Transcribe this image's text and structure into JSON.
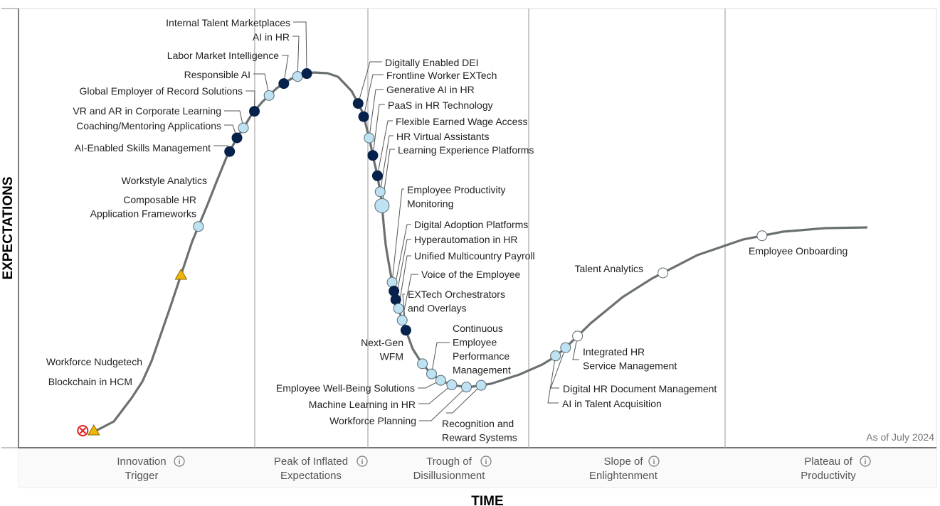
{
  "chart_data": {
    "type": "hype-cycle",
    "xlabel": "TIME",
    "ylabel": "EXPECTATIONS",
    "note": "As of July 2024",
    "phases": [
      [
        "Innovation",
        "Trigger"
      ],
      [
        "Peak of Inflated",
        "Expectations"
      ],
      [
        "Trough of",
        "Disillusionment"
      ],
      [
        "Slope of",
        "Enlightenment"
      ],
      [
        "Plateau of",
        "Productivity"
      ]
    ],
    "colors": {
      "curve": "#6b7170",
      "less_than_2_years": "#ffffff",
      "2_to_5_years": "#bfe2f2",
      "5_to_10_years": "#06224a",
      "more_than_10_years": "#f2b705",
      "obsolete_before_plateau": "#e02020"
    },
    "technologies": [
      {
        "name": [
          "Blockchain in HCM"
        ],
        "t": 0.07,
        "category": "obsolete_before_plateau"
      },
      {
        "name": [
          "Workforce Nudgetech"
        ],
        "t": 0.082,
        "category": "more_than_10_years"
      },
      {
        "name": [
          "Composable HR",
          "Application Frameworks"
        ],
        "t": 0.177,
        "category": "more_than_10_years"
      },
      {
        "name": [
          "Workstyle Analytics"
        ],
        "t": 0.196,
        "category": "2_to_5_years"
      },
      {
        "name": [
          "AI-Enabled Skills Management"
        ],
        "t": 0.23,
        "category": "5_to_10_years"
      },
      {
        "name": [
          "Coaching/Mentoring Applications"
        ],
        "t": 0.238,
        "category": "5_to_10_years"
      },
      {
        "name": [
          "VR and AR in Corporate Learning"
        ],
        "t": 0.245,
        "category": "2_to_5_years"
      },
      {
        "name": [
          "Global Employer of Record Solutions"
        ],
        "t": 0.257,
        "category": "5_to_10_years"
      },
      {
        "name": [
          "Responsible AI"
        ],
        "t": 0.273,
        "category": "2_to_5_years"
      },
      {
        "name": [
          "Labor Market Intelligence"
        ],
        "t": 0.289,
        "category": "5_to_10_years"
      },
      {
        "name": [
          "AI in HR"
        ],
        "t": 0.304,
        "category": "2_to_5_years"
      },
      {
        "name": [
          "Internal Talent Marketplaces"
        ],
        "t": 0.314,
        "category": "5_to_10_years"
      },
      {
        "name": [
          "Digitally Enabled DEI"
        ],
        "t": 0.37,
        "category": "5_to_10_years"
      },
      {
        "name": [
          "Frontline Worker EXTech"
        ],
        "t": 0.376,
        "category": "5_to_10_years"
      },
      {
        "name": [
          "Generative AI in HR"
        ],
        "t": 0.382,
        "category": "2_to_5_years"
      },
      {
        "name": [
          "PaaS in HR Technology"
        ],
        "t": 0.386,
        "category": "5_to_10_years"
      },
      {
        "name": [
          "Flexible Earned Wage Access"
        ],
        "t": 0.391,
        "category": "5_to_10_years"
      },
      {
        "name": [
          "HR Virtual Assistants"
        ],
        "t": 0.394,
        "category": "2_to_5_years"
      },
      {
        "name": [
          "Learning Experience Platforms"
        ],
        "t": 0.396,
        "category": "2_to_5_years"
      },
      {
        "name": [
          "Employee Productivity",
          "Monitoring"
        ],
        "t": 0.407,
        "category": "2_to_5_years"
      },
      {
        "name": [
          "Digital Adoption Platforms"
        ],
        "t": 0.409,
        "category": "5_to_10_years"
      },
      {
        "name": [
          "Hyperautomation in HR"
        ],
        "t": 0.411,
        "category": "5_to_10_years"
      },
      {
        "name": [
          "Unified Multicountry Payroll"
        ],
        "t": 0.414,
        "category": "2_to_5_years"
      },
      {
        "name": [
          "Voice of the Employee"
        ],
        "t": 0.418,
        "category": "2_to_5_years"
      },
      {
        "name": [
          "EXTech Orchestrators",
          "and Overlays"
        ],
        "t": 0.422,
        "category": "5_to_10_years"
      },
      {
        "name": [
          "Next-Gen",
          "WFM"
        ],
        "t": 0.44,
        "category": "2_to_5_years"
      },
      {
        "name": [
          "Continuous",
          "Employee",
          "Performance",
          "Management"
        ],
        "t": 0.45,
        "category": "2_to_5_years"
      },
      {
        "name": [
          "Employee Well-Being Solutions"
        ],
        "t": 0.46,
        "category": "2_to_5_years"
      },
      {
        "name": [
          "Machine Learning in HR"
        ],
        "t": 0.472,
        "category": "2_to_5_years"
      },
      {
        "name": [
          "Workforce Planning"
        ],
        "t": 0.488,
        "category": "2_to_5_years"
      },
      {
        "name": [
          "Recognition and",
          "Reward Systems"
        ],
        "t": 0.504,
        "category": "2_to_5_years"
      },
      {
        "name": [
          "AI in Talent Acquisition"
        ],
        "t": 0.585,
        "category": "2_to_5_years"
      },
      {
        "name": [
          "Digital HR Document Management"
        ],
        "t": 0.596,
        "category": "2_to_5_years"
      },
      {
        "name": [
          "Integrated HR",
          "Service Management"
        ],
        "t": 0.609,
        "category": "less_than_2_years"
      },
      {
        "name": [
          "Talent Analytics"
        ],
        "t": 0.702,
        "category": "less_than_2_years"
      },
      {
        "name": [
          "Employee Onboarding"
        ],
        "t": 0.81,
        "category": "less_than_2_years"
      }
    ]
  }
}
